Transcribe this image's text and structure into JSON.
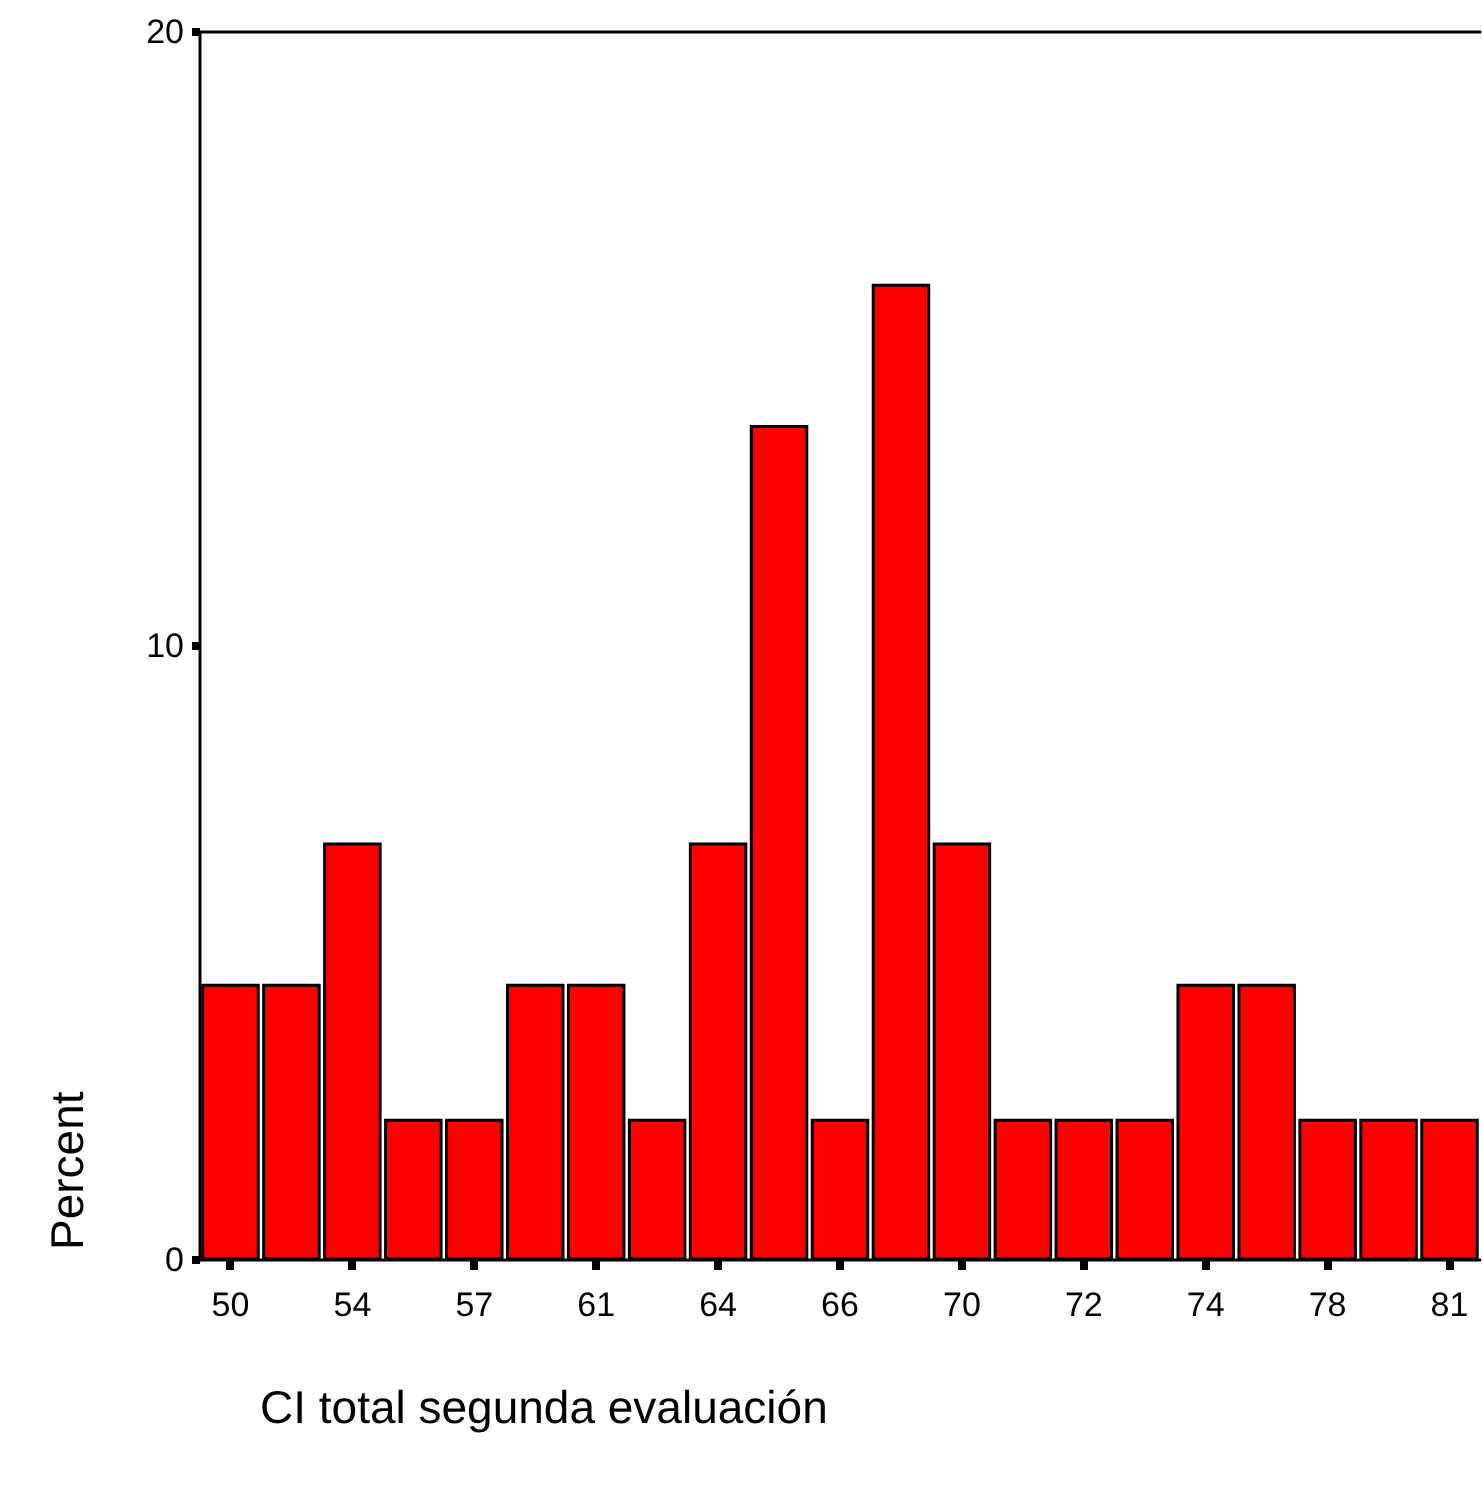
{
  "chart_data": {
    "type": "bar",
    "xlabel": "CI total segunda evaluación",
    "ylabel": "Percent",
    "categories": [
      "50",
      null,
      "54",
      null,
      "57",
      null,
      "61",
      null,
      "64",
      null,
      "66",
      null,
      "70",
      null,
      "72",
      null,
      "74",
      null,
      "78",
      null,
      "81"
    ],
    "values": [
      4.5,
      4.5,
      6.8,
      2.3,
      2.3,
      4.5,
      4.5,
      2.3,
      6.8,
      13.6,
      2.3,
      15.9,
      6.8,
      2.3,
      2.3,
      2.3,
      4.5,
      4.5,
      2.3,
      2.3,
      2.3
    ],
    "color": "#ff0000",
    "ylim": [
      0,
      20
    ],
    "yticks": [
      0,
      10,
      20
    ]
  }
}
